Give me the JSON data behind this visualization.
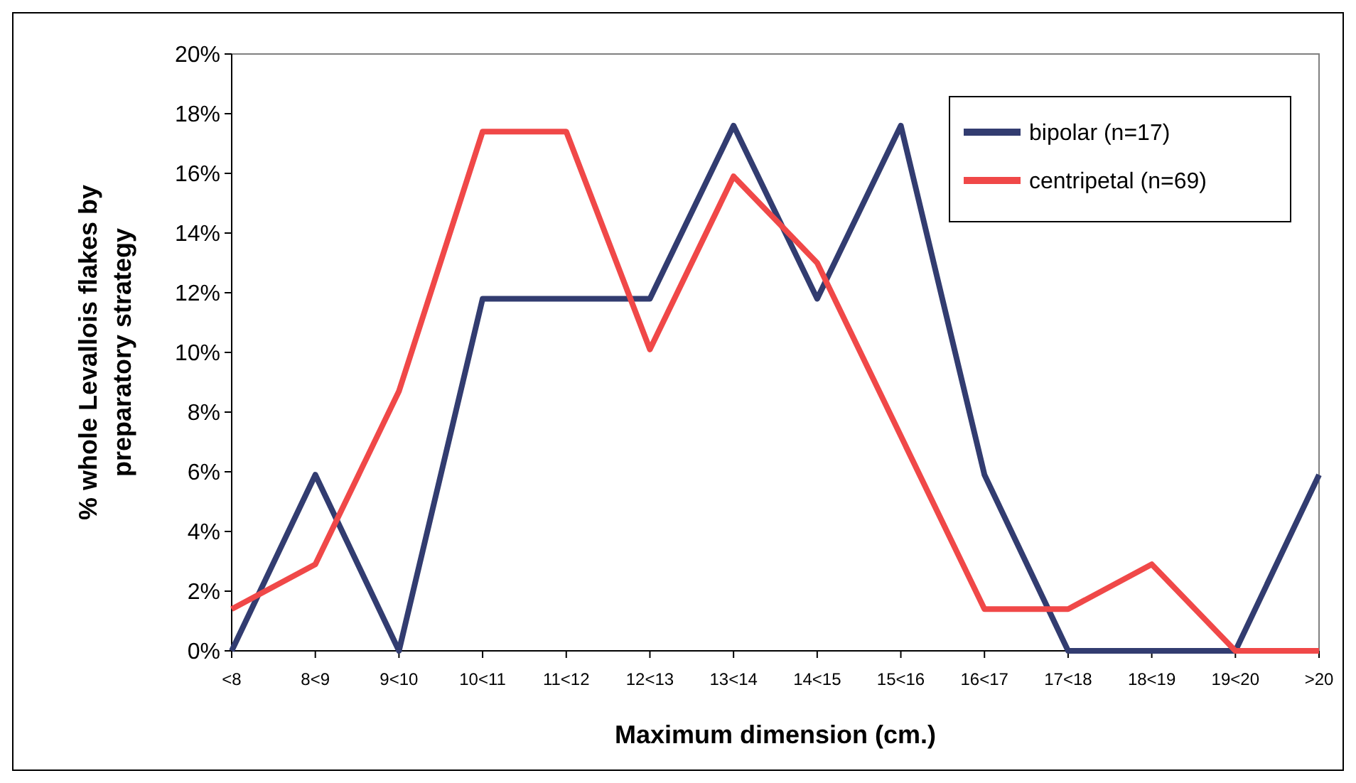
{
  "chart_data": {
    "type": "line",
    "xlabel": "Maximum dimension (cm.)",
    "ylabel": "% whole Levallois flakes by preparatory strategy",
    "categories": [
      "<8",
      "8<9",
      "9<10",
      "10<11",
      "11<12",
      "12<13",
      "13<14",
      "14<15",
      "15<16",
      "16<17",
      "17<18",
      "18<19",
      "19<20",
      ">20"
    ],
    "series": [
      {
        "name": "bipolar (n=17)",
        "color": "#323c70",
        "values": [
          0,
          5.9,
          0,
          11.8,
          11.8,
          11.8,
          17.6,
          11.8,
          17.6,
          5.9,
          0,
          0,
          0,
          5.9
        ]
      },
      {
        "name": "centripetal (n=69)",
        "color": "#f04848",
        "values": [
          1.4,
          2.9,
          8.7,
          17.4,
          17.4,
          10.1,
          15.9,
          13.0,
          7.2,
          1.4,
          1.4,
          2.9,
          0,
          0
        ]
      }
    ],
    "ylim": [
      0,
      20
    ],
    "yticks": [
      {
        "value": 0,
        "label": "0%"
      },
      {
        "value": 2,
        "label": "2%"
      },
      {
        "value": 4,
        "label": "4%"
      },
      {
        "value": 6,
        "label": "6%"
      },
      {
        "value": 8,
        "label": "8%"
      },
      {
        "value": 10,
        "label": "10%"
      },
      {
        "value": 12,
        "label": "12%"
      },
      {
        "value": 14,
        "label": "14%"
      },
      {
        "value": 16,
        "label": "16%"
      },
      {
        "value": 18,
        "label": "18%"
      },
      {
        "value": 20,
        "label": "20%"
      }
    ],
    "grid": false,
    "legend": "top right",
    "marker": "none",
    "line_style": "solid"
  }
}
